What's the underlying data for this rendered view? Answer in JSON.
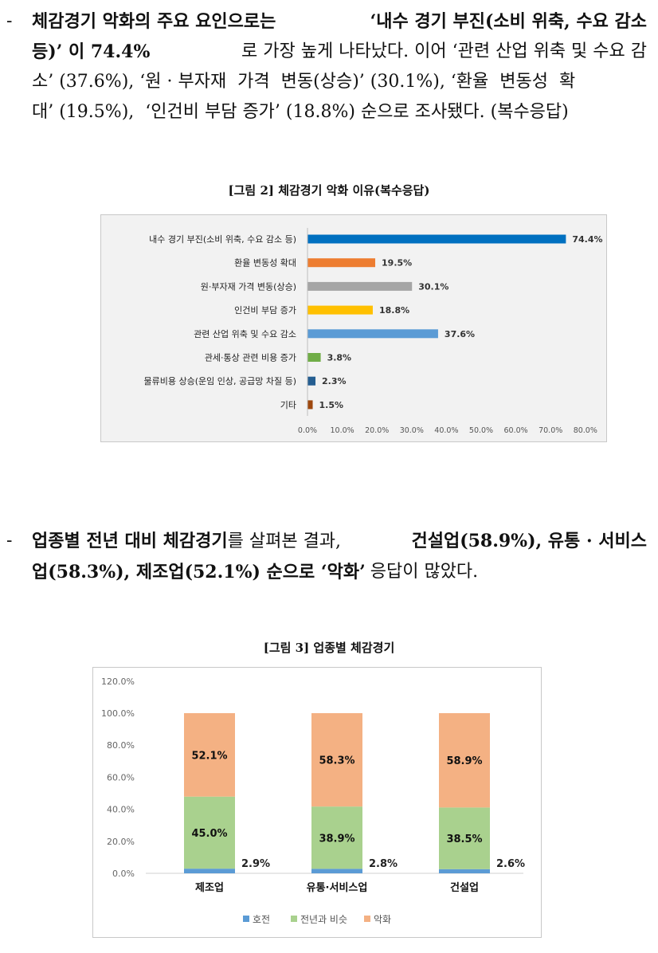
{
  "para1": {
    "line1": [
      "- ",
      "체감경기 악화의 주요 요인으로는 ",
      "‘내수 경기 부진(소비 위축, 수요 감소"
    ],
    "line2a": "등)’ 이 74.4%",
    "line2b": "로 가장 높게 나타났다. 이어 ‘관련 산업 위축 및 수요 감",
    "line3": "소’ (37.6%), ‘원 · 부자재  가격  변동(상승)’ (30.1%), ‘환율  변동성  확",
    "line4": "대’ (19.5%),  ‘인건비 부담 증가’ (18.8%) 순으로 조사됐다. (복수응답)"
  },
  "figure2": {
    "title": "[그림 2] 체감경기 악화 이유(복수응답)",
    "chart_data": {
      "type": "bar",
      "orientation": "horizontal",
      "categories": [
        "내수 경기 부진(소비 위축, 수요 감소 등)",
        "환율 변동성 확대",
        "원·부자재 가격 변동(상승)",
        "인건비 부담 증가",
        "관련 산업 위축 및 수요 감소",
        "관세·통상 관련 비용 증가",
        "물류비용 상승(운임 인상, 공급망 차질 등)",
        "기타"
      ],
      "values": [
        74.4,
        19.5,
        30.1,
        18.8,
        37.6,
        3.8,
        2.3,
        1.5
      ],
      "value_labels": [
        "74.4%",
        "19.5%",
        "30.1%",
        "18.8%",
        "37.6%",
        "3.8%",
        "2.3%",
        "1.5%"
      ],
      "colors": [
        "#0070c0",
        "#ed7d31",
        "#a5a5a5",
        "#ffc000",
        "#5b9bd5",
        "#70ad47",
        "#255e91",
        "#9e480e"
      ],
      "xlim": [
        0,
        80
      ],
      "ticks": [
        "0.0%",
        "10.0%",
        "20.0%",
        "30.0%",
        "40.0%",
        "50.0%",
        "60.0%",
        "70.0%",
        "80.0%"
      ],
      "grid": false
    }
  },
  "para2": {
    "line1a": "- ",
    "line1b": "업종별 전년 대비 체감경기",
    "line1c": "를 살펴본 결과,",
    "line1d": "건설업(58.9%), 유통 · 서비스",
    "line2a": "업(58.3%), 제조업(52.1%) 순으로 ‘악화’",
    "line2b": "응답이 많았다."
  },
  "figure3": {
    "title": "[그림 3] 업종별 체감경기",
    "chart_data": {
      "type": "bar",
      "stacked": true,
      "categories": [
        "제조업",
        "유통·서비스업",
        "건설업"
      ],
      "series": [
        {
          "name": "호전",
          "values": [
            2.9,
            2.8,
            2.6
          ],
          "labels": [
            "2.9%",
            "2.8%",
            "2.6%"
          ],
          "color": "#5b9bd5"
        },
        {
          "name": "전년과 비슷",
          "values": [
            45.0,
            38.9,
            38.5
          ],
          "labels": [
            "45.0%",
            "38.9%",
            "38.5%"
          ],
          "color": "#a9d18e"
        },
        {
          "name": "악화",
          "values": [
            52.1,
            58.3,
            58.9
          ],
          "labels": [
            "52.1%",
            "58.3%",
            "58.9%"
          ],
          "color": "#f4b183"
        }
      ],
      "ylim": [
        0,
        120
      ],
      "ticks": [
        "0.0%",
        "20.0%",
        "40.0%",
        "60.0%",
        "80.0%",
        "100.0%",
        "120.0%"
      ],
      "legend": "bottom",
      "grid": false
    }
  }
}
